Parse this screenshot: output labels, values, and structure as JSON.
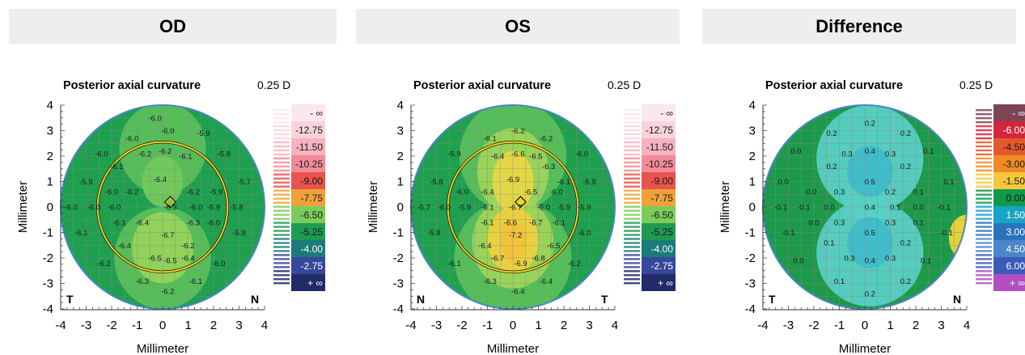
{
  "headers": [
    "OD",
    "OS",
    "Difference"
  ],
  "chart_data": [
    {
      "type": "heatmap",
      "title": "Posterior axial curvature",
      "step_label": "0.25 D",
      "xlabel": "Millimeter",
      "ylabel": "Millimeter",
      "xlim": [
        -4,
        4
      ],
      "ylim": [
        -4,
        4
      ],
      "xticks": [
        -4,
        -3,
        -2,
        -1,
        0,
        1,
        2,
        3,
        4
      ],
      "yticks": [
        -4,
        -3,
        -2,
        -1,
        0,
        1,
        2,
        3,
        4
      ],
      "corner_left": "T",
      "corner_right": "N",
      "scale": [
        "- ∞",
        "-12.75",
        "-11.50",
        "-10.25",
        "-9.00",
        "-7.75",
        "-6.50",
        "-5.25",
        "-4.00",
        "-2.75",
        "+ ∞"
      ],
      "scale_colors": [
        "#fbe8ee",
        "#f9d3dc",
        "#f6b3bf",
        "#f08c98",
        "#e8534e",
        "#f0a23a",
        "#7ccc5c",
        "#1f9a52",
        "#1b7a7a",
        "#35489b",
        "#222a6a"
      ],
      "points": [
        {
          "x": -0.3,
          "y": 3.5,
          "v": "-6.0"
        },
        {
          "x": 0.2,
          "y": 3.0,
          "v": "-6.0"
        },
        {
          "x": -1.2,
          "y": 2.7,
          "v": "-6.0"
        },
        {
          "x": 1.6,
          "y": 2.9,
          "v": "-5.9"
        },
        {
          "x": -2.4,
          "y": 2.1,
          "v": "-6.0"
        },
        {
          "x": -0.7,
          "y": 2.1,
          "v": "-6.2"
        },
        {
          "x": 0.1,
          "y": 2.2,
          "v": "-6.2"
        },
        {
          "x": 0.9,
          "y": 2.0,
          "v": "-6.1"
        },
        {
          "x": 2.4,
          "y": 2.1,
          "v": "-5.8"
        },
        {
          "x": -1.8,
          "y": 1.6,
          "v": "-6.1"
        },
        {
          "x": -3.0,
          "y": 1.0,
          "v": "-5.9"
        },
        {
          "x": -0.1,
          "y": 1.1,
          "v": "-6.4"
        },
        {
          "x": 3.2,
          "y": 1.0,
          "v": "-5.7"
        },
        {
          "x": -2.0,
          "y": 0.6,
          "v": "-6.0"
        },
        {
          "x": -1.2,
          "y": 0.6,
          "v": "-6.2"
        },
        {
          "x": 1.2,
          "y": 0.6,
          "v": "-6.2"
        },
        {
          "x": 2.1,
          "y": 0.6,
          "v": "-5.9"
        },
        {
          "x": -3.6,
          "y": 0.0,
          "v": "-6.0"
        },
        {
          "x": -2.7,
          "y": 0.0,
          "v": "-6.0"
        },
        {
          "x": -1.9,
          "y": 0.0,
          "v": "-6.0"
        },
        {
          "x": 0.3,
          "y": 0.0,
          "v": "-6.3"
        },
        {
          "x": 1.3,
          "y": 0.0,
          "v": "-6.0"
        },
        {
          "x": 2.0,
          "y": 0.0,
          "v": "-5.9"
        },
        {
          "x": 2.9,
          "y": 0.0,
          "v": "-5.8"
        },
        {
          "x": -1.7,
          "y": -0.6,
          "v": "-6.1"
        },
        {
          "x": -0.8,
          "y": -0.6,
          "v": "-6.4"
        },
        {
          "x": 1.2,
          "y": -0.6,
          "v": "-6.3"
        },
        {
          "x": 2.0,
          "y": -0.6,
          "v": "-6.0"
        },
        {
          "x": -3.2,
          "y": -1.0,
          "v": "-6.1"
        },
        {
          "x": 0.2,
          "y": -1.1,
          "v": "-6.7"
        },
        {
          "x": 3.0,
          "y": -1.0,
          "v": "-5.9"
        },
        {
          "x": -1.5,
          "y": -1.5,
          "v": "-6.4"
        },
        {
          "x": 1.0,
          "y": -1.5,
          "v": "-6.2"
        },
        {
          "x": -2.3,
          "y": -2.2,
          "v": "-6.2"
        },
        {
          "x": -0.3,
          "y": -2.0,
          "v": "-6.5"
        },
        {
          "x": 0.3,
          "y": -2.1,
          "v": "-6.5"
        },
        {
          "x": 1.0,
          "y": -2.0,
          "v": "-6.4"
        },
        {
          "x": 2.2,
          "y": -2.2,
          "v": "-6.0"
        },
        {
          "x": -0.8,
          "y": -2.9,
          "v": "-6.3"
        },
        {
          "x": 0.2,
          "y": -3.3,
          "v": "-6.2"
        },
        {
          "x": 1.3,
          "y": -2.9,
          "v": "-6.1"
        }
      ]
    },
    {
      "type": "heatmap",
      "title": "Posterior axial curvature",
      "step_label": "0.25 D",
      "xlabel": "Millimeter",
      "ylabel": "Millimeter",
      "xlim": [
        -4,
        4
      ],
      "ylim": [
        -4,
        4
      ],
      "xticks": [
        -4,
        -3,
        -2,
        -1,
        0,
        1,
        2,
        3,
        4
      ],
      "yticks": [
        -4,
        -3,
        -2,
        -1,
        0,
        1,
        2,
        3,
        4
      ],
      "corner_left": "N",
      "corner_right": "T",
      "scale": [
        "- ∞",
        "-12.75",
        "-11.50",
        "-10.25",
        "-9.00",
        "-7.75",
        "-6.50",
        "-5.25",
        "-4.00",
        "-2.75",
        "+ ∞"
      ],
      "scale_colors": [
        "#fbe8ee",
        "#f9d3dc",
        "#f6b3bf",
        "#f08c98",
        "#e8534e",
        "#f0a23a",
        "#7ccc5c",
        "#1f9a52",
        "#1b7a7a",
        "#35489b",
        "#222a6a"
      ],
      "points": [
        {
          "x": 0.2,
          "y": 3.0,
          "v": "-6.2"
        },
        {
          "x": -0.9,
          "y": 2.7,
          "v": "-6.1"
        },
        {
          "x": 1.3,
          "y": 2.7,
          "v": "-6.2"
        },
        {
          "x": -2.3,
          "y": 2.1,
          "v": "-5.9"
        },
        {
          "x": -0.6,
          "y": 2.0,
          "v": "-6.4"
        },
        {
          "x": 0.2,
          "y": 2.1,
          "v": "-6.6"
        },
        {
          "x": 0.9,
          "y": 2.0,
          "v": "-6.5"
        },
        {
          "x": 2.7,
          "y": 2.1,
          "v": "-6.0"
        },
        {
          "x": 1.4,
          "y": 1.6,
          "v": "-6.3"
        },
        {
          "x": -3.0,
          "y": 1.0,
          "v": "-5.8"
        },
        {
          "x": 0.0,
          "y": 1.1,
          "v": "-6.9"
        },
        {
          "x": 2.0,
          "y": 1.0,
          "v": "-6.1"
        },
        {
          "x": 3.0,
          "y": 1.0,
          "v": "-5.9"
        },
        {
          "x": -2.0,
          "y": 0.6,
          "v": "-6.0"
        },
        {
          "x": -1.0,
          "y": 0.6,
          "v": "-6.4"
        },
        {
          "x": 0.7,
          "y": 0.6,
          "v": "-6.5"
        },
        {
          "x": 1.7,
          "y": 0.6,
          "v": "-6.0"
        },
        {
          "x": -3.5,
          "y": 0.0,
          "v": "-5.7"
        },
        {
          "x": -2.7,
          "y": 0.0,
          "v": "-6.0"
        },
        {
          "x": -1.9,
          "y": 0.0,
          "v": "-5.9"
        },
        {
          "x": -1.0,
          "y": 0.0,
          "v": "-6.1"
        },
        {
          "x": 0.1,
          "y": 0.0,
          "v": "-6.7"
        },
        {
          "x": 1.2,
          "y": 0.0,
          "v": "-6.0"
        },
        {
          "x": 2.0,
          "y": 0.0,
          "v": "-5.9"
        },
        {
          "x": 2.8,
          "y": 0.0,
          "v": "-5.9"
        },
        {
          "x": -1.0,
          "y": -0.6,
          "v": "-6.1"
        },
        {
          "x": -0.1,
          "y": -0.6,
          "v": "-6.6"
        },
        {
          "x": 0.9,
          "y": -0.6,
          "v": "-6.7"
        },
        {
          "x": 1.8,
          "y": -0.6,
          "v": "-6.1"
        },
        {
          "x": -3.1,
          "y": -1.0,
          "v": "-5.8"
        },
        {
          "x": 0.1,
          "y": -1.1,
          "v": "-7.2"
        },
        {
          "x": 2.8,
          "y": -1.0,
          "v": "-6.0"
        },
        {
          "x": -1.1,
          "y": -1.5,
          "v": "-6.4"
        },
        {
          "x": 1.6,
          "y": -1.5,
          "v": "-6.5"
        },
        {
          "x": -2.3,
          "y": -2.2,
          "v": "-6.1"
        },
        {
          "x": -0.6,
          "y": -2.0,
          "v": "-6.7"
        },
        {
          "x": 0.3,
          "y": -2.2,
          "v": "-6.9"
        },
        {
          "x": 1.0,
          "y": -2.0,
          "v": "-6.8"
        },
        {
          "x": 2.4,
          "y": -2.2,
          "v": "-6.2"
        },
        {
          "x": -0.9,
          "y": -2.9,
          "v": "-6.3"
        },
        {
          "x": 0.2,
          "y": -3.3,
          "v": "-6.4"
        },
        {
          "x": 1.3,
          "y": -2.9,
          "v": "-6.4"
        }
      ]
    },
    {
      "type": "heatmap",
      "title": "Posterior axial curvature",
      "step_label": "0.25 D",
      "xlabel": "Millimeter",
      "ylabel": "Millimeter",
      "xlim": [
        -4,
        4
      ],
      "ylim": [
        -4,
        4
      ],
      "xticks": [
        -4,
        -3,
        -2,
        -1,
        0,
        1,
        2,
        3,
        4
      ],
      "yticks": [
        -4,
        -3,
        -2,
        -1,
        0,
        1,
        2,
        3,
        4
      ],
      "corner_left": "T",
      "corner_right": "N",
      "scale": [
        "- ∞",
        "-6.00",
        "-4.50",
        "-3.00",
        "-1.50",
        "0.00",
        "1.50",
        "3.00",
        "4.50",
        "6.00",
        "+ ∞"
      ],
      "scale_colors": [
        "#7d4456",
        "#d2263b",
        "#e3582a",
        "#ef8a26",
        "#f5c73b",
        "#0f9a4a",
        "#18a4c4",
        "#2a74bb",
        "#4a86c8",
        "#3d5ab8",
        "#b34fc0"
      ],
      "points": [
        {
          "x": 0.2,
          "y": 3.3,
          "v": "0.2"
        },
        {
          "x": -1.3,
          "y": 2.9,
          "v": "0.2"
        },
        {
          "x": 1.6,
          "y": 2.9,
          "v": "0.2"
        },
        {
          "x": -2.7,
          "y": 2.2,
          "v": "0.0"
        },
        {
          "x": -0.7,
          "y": 2.1,
          "v": "0.3"
        },
        {
          "x": 0.2,
          "y": 2.2,
          "v": "0.4"
        },
        {
          "x": 1.0,
          "y": 2.1,
          "v": "0.3"
        },
        {
          "x": 2.5,
          "y": 2.2,
          "v": "0.1"
        },
        {
          "x": -1.3,
          "y": 1.6,
          "v": "0.2"
        },
        {
          "x": 1.6,
          "y": 1.6,
          "v": "0.2"
        },
        {
          "x": -3.2,
          "y": 1.0,
          "v": "0.0"
        },
        {
          "x": 0.2,
          "y": 1.0,
          "v": "0.5"
        },
        {
          "x": 3.3,
          "y": 1.0,
          "v": "0.1"
        },
        {
          "x": -2.1,
          "y": 0.6,
          "v": "0.0"
        },
        {
          "x": -1.0,
          "y": 0.6,
          "v": "0.3"
        },
        {
          "x": 1.0,
          "y": 0.6,
          "v": "0.2"
        },
        {
          "x": 2.1,
          "y": 0.6,
          "v": "0.1"
        },
        {
          "x": -3.3,
          "y": 0.0,
          "v": "-0.1"
        },
        {
          "x": -2.4,
          "y": 0.0,
          "v": "-0.1"
        },
        {
          "x": -1.4,
          "y": 0.0,
          "v": "0.0"
        },
        {
          "x": 0.2,
          "y": 0.0,
          "v": "0.4"
        },
        {
          "x": 1.2,
          "y": 0.0,
          "v": "0.1"
        },
        {
          "x": 2.1,
          "y": 0.0,
          "v": "0.0"
        },
        {
          "x": 3.1,
          "y": 0.0,
          "v": "-0.1"
        },
        {
          "x": -2.0,
          "y": -0.6,
          "v": "0.0"
        },
        {
          "x": -1.0,
          "y": -0.6,
          "v": "0.3"
        },
        {
          "x": 1.0,
          "y": -0.6,
          "v": "0.3"
        },
        {
          "x": 2.1,
          "y": -0.6,
          "v": "0.1"
        },
        {
          "x": -3.0,
          "y": -1.0,
          "v": "-0.1"
        },
        {
          "x": 0.2,
          "y": -1.0,
          "v": "0.5"
        },
        {
          "x": 3.2,
          "y": -1.0,
          "v": "-0.1"
        },
        {
          "x": -1.4,
          "y": -1.4,
          "v": "0.1"
        },
        {
          "x": 1.6,
          "y": -1.4,
          "v": "0.2"
        },
        {
          "x": -2.6,
          "y": -2.1,
          "v": "0.0"
        },
        {
          "x": -0.6,
          "y": -2.0,
          "v": "0.3"
        },
        {
          "x": 0.2,
          "y": -2.1,
          "v": "0.4"
        },
        {
          "x": 1.0,
          "y": -2.0,
          "v": "0.3"
        },
        {
          "x": 2.4,
          "y": -2.1,
          "v": "0.1"
        },
        {
          "x": -1.0,
          "y": -2.9,
          "v": "0.1"
        },
        {
          "x": 0.2,
          "y": -3.4,
          "v": "0.2"
        },
        {
          "x": 1.6,
          "y": -2.9,
          "v": "0.2"
        }
      ]
    }
  ]
}
